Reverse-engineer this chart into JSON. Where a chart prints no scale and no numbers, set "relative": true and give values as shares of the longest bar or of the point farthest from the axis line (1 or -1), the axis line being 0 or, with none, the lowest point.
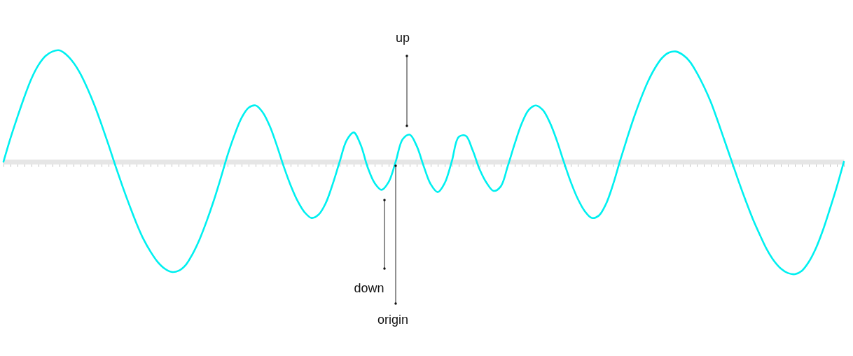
{
  "chart_data": {
    "type": "line",
    "relative": true,
    "color": "#00f0f0",
    "categories": [
      null,
      null,
      null,
      null,
      null,
      null,
      null,
      null,
      null,
      null,
      null,
      null,
      null,
      null,
      null,
      null,
      null,
      null,
      null,
      null,
      null,
      null,
      null,
      null,
      null,
      null,
      null,
      null,
      null,
      null,
      null,
      null,
      null,
      null,
      null,
      null,
      null,
      null,
      null,
      null,
      null,
      null,
      null,
      null,
      null,
      null,
      null,
      null,
      null,
      null,
      null,
      null,
      null,
      null,
      null,
      null,
      null,
      null,
      null,
      null,
      null,
      null,
      null,
      null,
      null,
      null,
      null,
      null,
      null,
      null,
      null,
      null,
      null,
      null,
      null,
      null,
      null,
      null,
      null,
      null,
      null,
      null,
      null,
      null,
      null,
      null,
      null,
      null,
      null,
      null,
      null,
      null,
      null,
      null,
      null,
      null,
      null,
      null,
      null,
      null,
      null,
      null,
      null,
      null,
      null,
      null,
      null,
      null,
      null,
      null,
      null,
      null,
      null,
      null,
      null,
      null,
      null,
      null,
      null,
      null,
      null
    ],
    "values": [
      0,
      0.21,
      0.4,
      0.58,
      0.74,
      0.86,
      0.94,
      0.98,
      0.99,
      0.95,
      0.88,
      0.78,
      0.65,
      0.5,
      0.33,
      0.15,
      -0.04,
      -0.22,
      -0.39,
      -0.55,
      -0.69,
      -0.8,
      -0.89,
      -0.95,
      -0.98,
      -0.97,
      -0.92,
      -0.82,
      -0.69,
      -0.53,
      -0.35,
      -0.15,
      0.06,
      0.24,
      0.39,
      0.48,
      0.5,
      0.44,
      0.32,
      0.15,
      -0.04,
      -0.21,
      -0.35,
      -0.45,
      -0.5,
      -0.47,
      -0.37,
      -0.2,
      0,
      0.19,
      0.26,
      0.15,
      -0.05,
      -0.19,
      -0.25,
      -0.18,
      0,
      0.2,
      0.24,
      0.14,
      -0.04,
      -0.2,
      -0.27,
      -0.19,
      0,
      0.22,
      0.23,
      0.1,
      -0.07,
      -0.19,
      -0.26,
      -0.22,
      -0.04,
      0.16,
      0.34,
      0.46,
      0.5,
      0.46,
      0.35,
      0.19,
      0,
      -0.18,
      -0.33,
      -0.44,
      -0.5,
      -0.48,
      -0.38,
      -0.21,
      0,
      0.2,
      0.39,
      0.56,
      0.71,
      0.83,
      0.92,
      0.97,
      0.98,
      0.95,
      0.89,
      0.79,
      0.67,
      0.53,
      0.36,
      0.18,
      0,
      -0.18,
      -0.35,
      -0.51,
      -0.65,
      -0.78,
      -0.88,
      -0.95,
      -0.99,
      -1.0,
      -0.97,
      -0.89,
      -0.77,
      -0.61,
      -0.42,
      -0.22,
      0
    ],
    "annotations": [
      "up",
      "down",
      "origin"
    ]
  }
}
